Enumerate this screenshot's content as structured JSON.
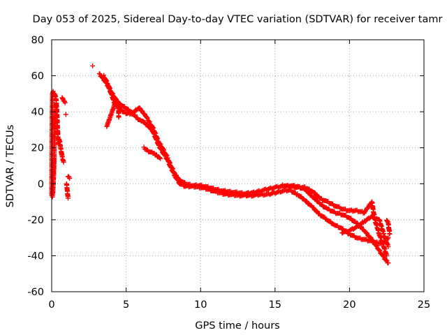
{
  "chart_data": {
    "type": "scatter",
    "title": "Day 053 of 2025, Sidereal Day-to-day VTEC variation (SDTVAR) for receiver tamr",
    "xlabel": "GPS time / hours",
    "ylabel": "SDTVAR / TECUs",
    "xlim": [
      0,
      25
    ],
    "ylim": [
      -60,
      80
    ],
    "xticks": [
      0,
      5,
      10,
      15,
      20,
      25
    ],
    "yticks": [
      -60,
      -40,
      -20,
      0,
      20,
      40,
      60,
      80
    ],
    "grid": true,
    "marker": "+",
    "marker_color": "#ff0000",
    "series": [
      {
        "name": "SDTVAR",
        "segments": [
          [
            [
              0.0,
              -6
            ],
            [
              0.02,
              28
            ],
            [
              0.05,
              50
            ],
            [
              0.1,
              51
            ],
            [
              0.2,
              50
            ],
            [
              0.3,
              47
            ],
            [
              0.35,
              40
            ],
            [
              0.4,
              30
            ],
            [
              0.45,
              22
            ]
          ],
          [
            [
              0.05,
              -7
            ],
            [
              0.1,
              -2
            ],
            [
              0.15,
              8
            ],
            [
              0.2,
              30
            ],
            [
              0.25,
              38
            ],
            [
              0.3,
              44
            ]
          ],
          [
            [
              0.5,
              25
            ],
            [
              0.6,
              20
            ],
            [
              0.7,
              15
            ],
            [
              0.8,
              12
            ]
          ],
          [
            [
              0.7,
              48
            ],
            [
              0.8,
              46
            ],
            [
              0.9,
              45
            ]
          ],
          [
            [
              0.95,
              38.5
            ]
          ],
          [
            [
              1.0,
              0
            ],
            [
              1.05,
              -4
            ],
            [
              1.1,
              -8
            ]
          ],
          [
            [
              1.1,
              4
            ],
            [
              1.2,
              3
            ]
          ],
          [
            [
              2.75,
              65.5
            ]
          ],
          [
            [
              3.2,
              61
            ],
            [
              3.5,
              58
            ],
            [
              3.8,
              54
            ],
            [
              4.0,
              50
            ],
            [
              4.2,
              45
            ],
            [
              4.5,
              42
            ],
            [
              4.8,
              40
            ],
            [
              5.1,
              39
            ],
            [
              5.4,
              39
            ],
            [
              5.7,
              41
            ],
            [
              5.9,
              42
            ],
            [
              6.1,
              40
            ],
            [
              6.3,
              38
            ],
            [
              6.5,
              35
            ],
            [
              6.8,
              31
            ],
            [
              7.0,
              27
            ],
            [
              7.2,
              23
            ],
            [
              7.5,
              19
            ],
            [
              7.8,
              14
            ],
            [
              8.0,
              10
            ],
            [
              8.3,
              5
            ],
            [
              8.6,
              2
            ],
            [
              9.0,
              0
            ],
            [
              9.5,
              -1
            ],
            [
              10.0,
              -1
            ],
            [
              10.5,
              -2
            ],
            [
              11.0,
              -3
            ],
            [
              11.5,
              -4
            ],
            [
              12.0,
              -4.5
            ],
            [
              12.5,
              -5
            ],
            [
              13.0,
              -5.5
            ],
            [
              13.5,
              -5
            ],
            [
              14.0,
              -4
            ],
            [
              14.5,
              -3
            ],
            [
              15.0,
              -2
            ],
            [
              15.5,
              -1.5
            ],
            [
              16.0,
              -1
            ],
            [
              16.5,
              -1.5
            ],
            [
              17.0,
              -3
            ],
            [
              17.5,
              -7
            ],
            [
              18.0,
              -11
            ],
            [
              18.5,
              -14
            ],
            [
              19.0,
              -16
            ],
            [
              19.5,
              -17
            ],
            [
              20.0,
              -19
            ],
            [
              20.5,
              -22
            ],
            [
              21.0,
              -26
            ],
            [
              21.5,
              -31
            ],
            [
              22.0,
              -37
            ],
            [
              22.3,
              -41
            ],
            [
              22.6,
              -44
            ]
          ],
          [
            [
              3.5,
              60
            ],
            [
              3.8,
              55
            ],
            [
              4.0,
              51
            ],
            [
              4.3,
              47
            ],
            [
              4.6,
              44
            ],
            [
              5.0,
              42
            ],
            [
              5.3,
              40
            ],
            [
              5.6,
              38
            ],
            [
              5.8,
              36
            ],
            [
              6.0,
              35
            ],
            [
              6.2,
              34
            ],
            [
              6.5,
              32
            ],
            [
              6.8,
              29
            ],
            [
              7.0,
              25
            ],
            [
              7.2,
              21
            ],
            [
              7.5,
              17
            ],
            [
              7.8,
              13
            ],
            [
              8.0,
              9
            ],
            [
              8.3,
              4
            ],
            [
              8.6,
              0
            ],
            [
              9.0,
              -1.5
            ],
            [
              9.5,
              -1.5
            ],
            [
              10.0,
              -2
            ],
            [
              10.5,
              -3
            ],
            [
              11.0,
              -4.5
            ],
            [
              11.5,
              -5.5
            ],
            [
              12.0,
              -6
            ],
            [
              12.5,
              -6.5
            ],
            [
              13.0,
              -6.5
            ],
            [
              13.5,
              -6.5
            ],
            [
              14.0,
              -6
            ],
            [
              14.5,
              -6
            ],
            [
              15.0,
              -5
            ],
            [
              15.5,
              -4
            ],
            [
              16.0,
              -3.5
            ],
            [
              16.5,
              -6
            ],
            [
              17.0,
              -9
            ],
            [
              17.5,
              -13
            ],
            [
              18.0,
              -17
            ],
            [
              18.5,
              -20
            ],
            [
              19.0,
              -23
            ],
            [
              19.5,
              -25
            ],
            [
              20.0,
              -28
            ],
            [
              20.5,
              -30
            ],
            [
              21.0,
              -31
            ],
            [
              21.5,
              -32
            ],
            [
              22.0,
              -33
            ],
            [
              22.3,
              -33
            ],
            [
              22.6,
              -30
            ]
          ],
          [
            [
              6.2,
              20
            ],
            [
              6.5,
              18
            ],
            [
              6.8,
              17
            ],
            [
              7.0,
              16
            ],
            [
              7.3,
              14
            ]
          ],
          [
            [
              15.5,
              -1
            ],
            [
              16.0,
              -1.5
            ],
            [
              16.5,
              -2
            ],
            [
              17.0,
              -2
            ],
            [
              17.5,
              -4
            ],
            [
              18.0,
              -8
            ],
            [
              18.5,
              -10
            ],
            [
              19.0,
              -12
            ],
            [
              19.5,
              -14
            ],
            [
              20.0,
              -15
            ],
            [
              20.5,
              -15
            ],
            [
              21.0,
              -16
            ],
            [
              21.5,
              -10
            ],
            [
              21.7,
              -20
            ],
            [
              22.0,
              -28
            ],
            [
              22.3,
              -35
            ],
            [
              22.5,
              -40
            ]
          ],
          [
            [
              19.5,
              -27
            ],
            [
              20.0,
              -26
            ],
            [
              20.5,
              -24
            ],
            [
              21.0,
              -21
            ],
            [
              21.5,
              -18
            ],
            [
              22.0,
              -20
            ],
            [
              22.3,
              -28
            ],
            [
              22.6,
              -35
            ]
          ],
          [
            [
              22.5,
              -20
            ],
            [
              22.6,
              -22
            ],
            [
              22.7,
              -28
            ]
          ],
          [
            [
              3.7,
              32
            ],
            [
              3.8,
              34
            ],
            [
              4.3,
              46
            ],
            [
              4.5,
              44
            ],
            [
              4.5,
              37
            ]
          ],
          [
            [
              0.05,
              3
            ],
            [
              0.1,
              6
            ],
            [
              0.12,
              12
            ],
            [
              0.15,
              14
            ]
          ]
        ]
      }
    ]
  }
}
